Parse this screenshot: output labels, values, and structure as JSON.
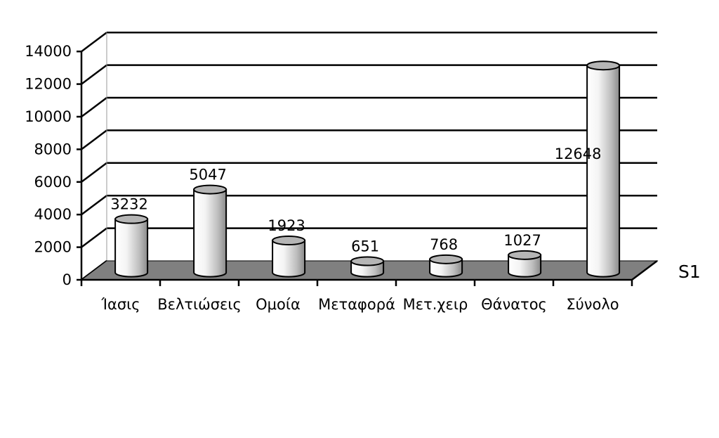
{
  "chart_data": {
    "type": "bar",
    "categories": [
      "Ίασις",
      "Βελτιώσεις",
      "Ομοία",
      "Μεταφορά",
      "Μετ.χειρ",
      "Θάνατος",
      "Σύνολο"
    ],
    "series": [
      {
        "name": "S1",
        "values": [
          3232,
          5047,
          1923,
          651,
          768,
          1027,
          12648
        ]
      }
    ],
    "data_labels": [
      "3232",
      "5047",
      "1923",
      "651",
      "768",
      "1027",
      "12648"
    ],
    "yticks": [
      "0",
      "2000",
      "4000",
      "6000",
      "8000",
      "10000",
      "12000",
      "14000"
    ],
    "ylim": [
      0,
      14000
    ],
    "grid": true,
    "style": "3d-cylinder",
    "colors": {
      "floor": "#808080",
      "bar_light": "#ffffff",
      "bar_dark": "#8a8a8a",
      "line": "#000000"
    }
  }
}
